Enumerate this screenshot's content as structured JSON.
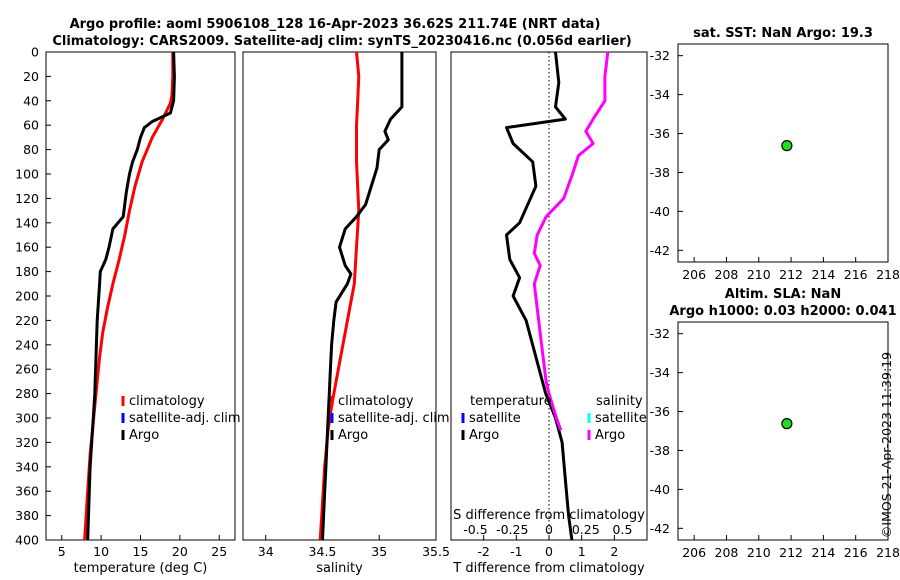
{
  "header": {
    "title_line1": "Argo profile: aoml 5906108_128 16-Apr-2023 36.62S 211.74E (NRT data)",
    "title_line2": "Climatology: CARS2009. Satellite-adj clim: synTS_20230416.nc (0.056d earlier)"
  },
  "colors": {
    "climatology": "#ff0000",
    "satellite": "#0000ff",
    "satellite_salinity": "#00ffff",
    "argo": "#000000",
    "argo_salinity": "#ff00ff",
    "marker_fill": "#22dd22"
  },
  "credit": "©IMOS 21-Apr-2023 11:39:19",
  "chart_data": [
    {
      "id": "temperature",
      "type": "line",
      "xlabel": "temperature (deg C)",
      "xlim": [
        3,
        27
      ],
      "xticks": [
        5,
        10,
        15,
        20,
        25
      ],
      "ylim": [
        0,
        400
      ],
      "yticks": [
        0,
        20,
        40,
        60,
        80,
        100,
        120,
        140,
        160,
        180,
        200,
        220,
        240,
        260,
        280,
        300,
        320,
        340,
        360,
        380,
        400
      ],
      "legend": {
        "position": "bottom-right",
        "entries": [
          "climatology",
          "satellite-adj. clim",
          "Argo"
        ]
      },
      "series": [
        {
          "name": "climatology",
          "color": "#ff0000",
          "points": [
            [
              19.1,
              0
            ],
            [
              19.1,
              20
            ],
            [
              19.0,
              35
            ],
            [
              18.8,
              42
            ],
            [
              17.8,
              55
            ],
            [
              16.5,
              70
            ],
            [
              15.2,
              90
            ],
            [
              14.3,
              110
            ],
            [
              13.6,
              130
            ],
            [
              13.0,
              150
            ],
            [
              12.3,
              170
            ],
            [
              11.5,
              190
            ],
            [
              10.8,
              210
            ],
            [
              10.2,
              230
            ],
            [
              9.8,
              250
            ],
            [
              9.5,
              270
            ],
            [
              9.2,
              290
            ],
            [
              8.9,
              310
            ],
            [
              8.6,
              330
            ],
            [
              8.4,
              350
            ],
            [
              8.2,
              370
            ],
            [
              8.0,
              390
            ],
            [
              7.9,
              400
            ]
          ]
        },
        {
          "name": "Argo",
          "color": "#000000",
          "points": [
            [
              19.2,
              0
            ],
            [
              19.3,
              20
            ],
            [
              19.2,
              40
            ],
            [
              18.8,
              50
            ],
            [
              16.5,
              57
            ],
            [
              15.5,
              62
            ],
            [
              15.0,
              70
            ],
            [
              14.6,
              80
            ],
            [
              14.0,
              90
            ],
            [
              13.6,
              100
            ],
            [
              13.2,
              115
            ],
            [
              12.8,
              135
            ],
            [
              11.5,
              145
            ],
            [
              11.0,
              160
            ],
            [
              10.6,
              170
            ],
            [
              9.9,
              180
            ],
            [
              9.8,
              190
            ],
            [
              9.7,
              200
            ],
            [
              9.5,
              220
            ],
            [
              9.4,
              240
            ],
            [
              9.3,
              260
            ],
            [
              9.2,
              280
            ],
            [
              9.0,
              300
            ],
            [
              8.8,
              320
            ],
            [
              8.6,
              340
            ],
            [
              8.5,
              360
            ],
            [
              8.4,
              380
            ],
            [
              8.3,
              400
            ]
          ]
        }
      ]
    },
    {
      "id": "salinity",
      "type": "line",
      "xlabel": "salinity",
      "xlim": [
        33.8,
        35.5
      ],
      "xticks": [
        34,
        34.5,
        35,
        35.5
      ],
      "ylim": [
        0,
        400
      ],
      "legend": {
        "position": "bottom-right",
        "entries": [
          "climatology",
          "satellite-adj. clim",
          "Argo"
        ]
      },
      "series": [
        {
          "name": "climatology",
          "color": "#ff0000",
          "points": [
            [
              34.8,
              0
            ],
            [
              34.82,
              20
            ],
            [
              34.81,
              40
            ],
            [
              34.8,
              60
            ],
            [
              34.8,
              90
            ],
            [
              34.82,
              130
            ],
            [
              34.8,
              160
            ],
            [
              34.78,
              190
            ],
            [
              34.74,
              210
            ],
            [
              34.7,
              230
            ],
            [
              34.66,
              250
            ],
            [
              34.62,
              270
            ],
            [
              34.58,
              290
            ],
            [
              34.55,
              310
            ],
            [
              34.52,
              340
            ],
            [
              34.5,
              370
            ],
            [
              34.48,
              400
            ]
          ]
        },
        {
          "name": "Argo",
          "color": "#000000",
          "points": [
            [
              35.2,
              0
            ],
            [
              35.2,
              20
            ],
            [
              35.2,
              45
            ],
            [
              35.1,
              55
            ],
            [
              35.05,
              65
            ],
            [
              35.08,
              72
            ],
            [
              35.0,
              80
            ],
            [
              34.98,
              95
            ],
            [
              34.93,
              110
            ],
            [
              34.88,
              125
            ],
            [
              34.8,
              135
            ],
            [
              34.7,
              145
            ],
            [
              34.65,
              160
            ],
            [
              34.7,
              175
            ],
            [
              34.75,
              182
            ],
            [
              34.72,
              190
            ],
            [
              34.62,
              205
            ],
            [
              34.6,
              220
            ],
            [
              34.58,
              240
            ],
            [
              34.57,
              260
            ],
            [
              34.56,
              280
            ],
            [
              34.55,
              300
            ],
            [
              34.54,
              320
            ],
            [
              34.53,
              340
            ],
            [
              34.52,
              360
            ],
            [
              34.51,
              380
            ],
            [
              34.5,
              400
            ]
          ]
        }
      ]
    },
    {
      "id": "difference",
      "type": "line",
      "xlabel": "T difference from climatology",
      "xlabel_top": "S difference from climatology",
      "xlim": [
        -3,
        3
      ],
      "xticks": [
        -2,
        -1,
        0,
        1,
        2
      ],
      "s_xticks": [
        -0.5,
        -0.25,
        0,
        0.25,
        0.5
      ],
      "s_tick_labels": [
        "-0.5",
        "-0.25",
        "0",
        "0.25",
        "0.5"
      ],
      "ylim": [
        0,
        400
      ],
      "legend": {
        "position": "bottom",
        "temperature_title": "temperature",
        "salinity_title": "salinity",
        "entries": [
          "satellite",
          "Argo"
        ]
      },
      "series": [
        {
          "name": "temperature Argo",
          "color": "#000000",
          "points": [
            [
              0.2,
              0
            ],
            [
              0.3,
              25
            ],
            [
              0.2,
              45
            ],
            [
              0.5,
              55
            ],
            [
              -1.3,
              62
            ],
            [
              -1.1,
              75
            ],
            [
              -0.5,
              90
            ],
            [
              -0.4,
              110
            ],
            [
              -0.9,
              140
            ],
            [
              -1.3,
              150
            ],
            [
              -1.2,
              170
            ],
            [
              -0.9,
              185
            ],
            [
              -1.1,
              200
            ],
            [
              -0.7,
              220
            ],
            [
              -0.4,
              250
            ],
            [
              -0.1,
              280
            ],
            [
              0.2,
              300
            ],
            [
              0.4,
              320
            ],
            [
              0.5,
              350
            ],
            [
              0.6,
              380
            ],
            [
              0.7,
              400
            ]
          ]
        },
        {
          "name": "salinity Argo",
          "color": "#ff00ff",
          "points": [
            [
              0.4,
              0
            ],
            [
              0.38,
              20
            ],
            [
              0.38,
              40
            ],
            [
              0.3,
              55
            ],
            [
              0.25,
              65
            ],
            [
              0.3,
              75
            ],
            [
              0.2,
              85
            ],
            [
              0.16,
              100
            ],
            [
              0.1,
              120
            ],
            [
              -0.02,
              135
            ],
            [
              -0.08,
              150
            ],
            [
              -0.1,
              165
            ],
            [
              -0.06,
              175
            ],
            [
              -0.1,
              190
            ],
            [
              -0.08,
              210
            ],
            [
              -0.05,
              240
            ],
            [
              -0.02,
              270
            ],
            [
              0.0,
              280
            ],
            [
              0.05,
              300
            ],
            [
              0.08,
              310
            ]
          ]
        }
      ]
    },
    {
      "id": "sst-map",
      "type": "scatter",
      "title": "sat. SST: NaN Argo: 19.3",
      "xlim": [
        205,
        218
      ],
      "xticks": [
        206,
        208,
        210,
        212,
        214,
        216,
        218
      ],
      "ylim": [
        -42.6,
        -31.4
      ],
      "yticks": [
        -32,
        -34,
        -36,
        -38,
        -40,
        -42
      ],
      "points": [
        [
          211.74,
          -36.62
        ]
      ]
    },
    {
      "id": "sla-map",
      "type": "scatter",
      "title_line1": "Altim. SLA: NaN",
      "title_line2": "Argo h1000: 0.03 h2000: 0.041",
      "xlim": [
        205,
        218
      ],
      "xticks": [
        206,
        208,
        210,
        212,
        214,
        216,
        218
      ],
      "ylim": [
        -42.6,
        -31.4
      ],
      "yticks": [
        -32,
        -34,
        -36,
        -38,
        -40,
        -42
      ],
      "points": [
        [
          211.74,
          -36.62
        ]
      ]
    }
  ]
}
